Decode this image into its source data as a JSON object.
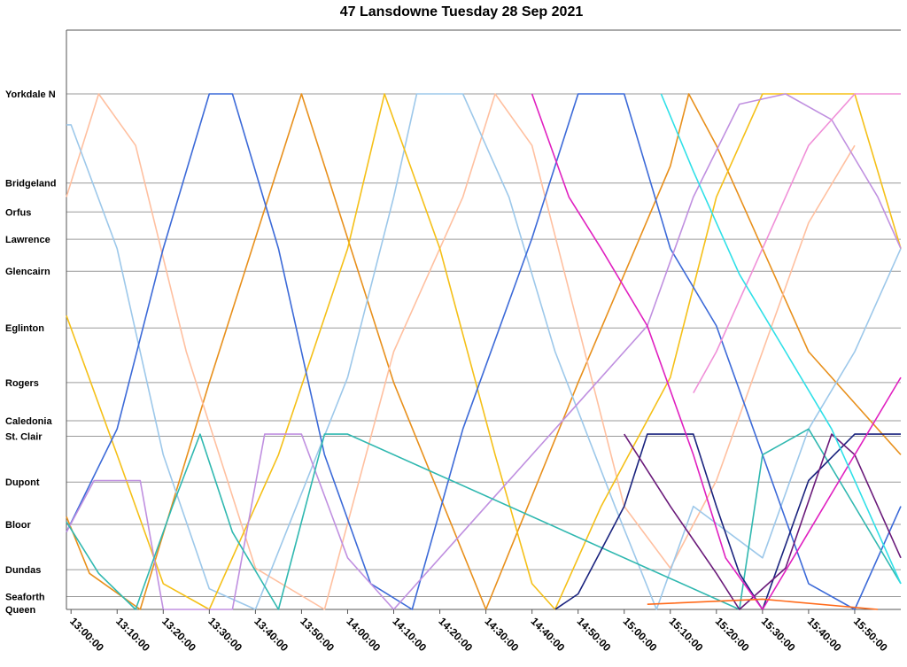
{
  "chart_data": {
    "type": "line",
    "title": "47 Lansdowne Tuesday 28 Sep 2021",
    "x_unit": "time of day",
    "x_range": [
      "12:59:00",
      "16:00:00"
    ],
    "x_ticks": [
      "13:00:00",
      "13:10:00",
      "13:20:00",
      "13:30:00",
      "13:40:00",
      "13:50:00",
      "14:00:00",
      "14:10:00",
      "14:20:00",
      "14:30:00",
      "14:40:00",
      "14:50:00",
      "15:00:00",
      "15:10:00",
      "15:20:00",
      "15:30:00",
      "15:40:00",
      "15:50:00"
    ],
    "y_unit": "stop position (0 = Queen, 1 = Yorkdale N)",
    "stops": [
      {
        "name": "Yorkdale N",
        "pos": 1.0
      },
      {
        "name": "Bridgeland",
        "pos": 0.827
      },
      {
        "name": "Orfus",
        "pos": 0.771
      },
      {
        "name": "Lawrence",
        "pos": 0.718
      },
      {
        "name": "Glencairn",
        "pos": 0.656
      },
      {
        "name": "Eglinton",
        "pos": 0.546
      },
      {
        "name": "Rogers",
        "pos": 0.44
      },
      {
        "name": "Caledonia",
        "pos": 0.366
      },
      {
        "name": "St. Clair",
        "pos": 0.336
      },
      {
        "name": "Dupont",
        "pos": 0.247
      },
      {
        "name": "Bloor",
        "pos": 0.165
      },
      {
        "name": "Dundas",
        "pos": 0.077
      },
      {
        "name": "Seaforth",
        "pos": 0.025
      },
      {
        "name": "Queen",
        "pos": 0.0
      }
    ],
    "gridlines": "horizontal at each stop",
    "legend": "none",
    "series": [
      {
        "color": "#e8901c",
        "points": [
          [
            "12:59:00",
            0.18
          ],
          [
            "13:04:00",
            0.07
          ],
          [
            "13:15:00",
            0.0
          ],
          [
            "13:30:00",
            0.44
          ],
          [
            "13:50:00",
            1.0
          ],
          [
            "14:10:00",
            0.44
          ],
          [
            "14:30:00",
            0.0
          ],
          [
            "14:50:00",
            0.44
          ],
          [
            "15:10:00",
            0.86
          ],
          [
            "15:14:00",
            1.0
          ],
          [
            "15:20:00",
            0.9
          ],
          [
            "15:40:00",
            0.5
          ],
          [
            "16:00:00",
            0.3
          ]
        ]
      },
      {
        "color": "#ffc0a0",
        "points": [
          [
            "12:59:00",
            0.8
          ],
          [
            "13:06:00",
            1.0
          ],
          [
            "13:14:00",
            0.9
          ],
          [
            "13:25:00",
            0.5
          ],
          [
            "13:40:00",
            0.08
          ],
          [
            "13:55:00",
            0.0
          ],
          [
            "14:10:00",
            0.5
          ],
          [
            "14:25:00",
            0.8
          ],
          [
            "14:32:00",
            1.0
          ],
          [
            "14:40:00",
            0.9
          ],
          [
            "14:50:00",
            0.55
          ],
          [
            "15:00:00",
            0.2
          ],
          [
            "15:10:00",
            0.08
          ],
          [
            "15:20:00",
            0.25
          ],
          [
            "15:40:00",
            0.75
          ],
          [
            "15:50:00",
            0.9
          ]
        ]
      },
      {
        "color": "#9dc8ea",
        "points": [
          [
            "12:59:00",
            0.94
          ],
          [
            "13:00:00",
            0.94
          ],
          [
            "13:10:00",
            0.7
          ],
          [
            "13:20:00",
            0.3
          ],
          [
            "13:30:00",
            0.04
          ],
          [
            "13:40:00",
            0.0
          ],
          [
            "14:00:00",
            0.45
          ],
          [
            "14:10:00",
            0.8
          ],
          [
            "14:15:00",
            1.0
          ],
          [
            "14:25:00",
            1.0
          ],
          [
            "14:35:00",
            0.8
          ],
          [
            "14:45:00",
            0.5
          ],
          [
            "14:58:00",
            0.2
          ],
          [
            "15:07:00",
            0.0
          ],
          [
            "15:15:00",
            0.2
          ],
          [
            "15:30:00",
            0.1
          ],
          [
            "15:40:00",
            0.35
          ],
          [
            "15:50:00",
            0.5
          ],
          [
            "16:00:00",
            0.7
          ]
        ]
      },
      {
        "color": "#f5c018",
        "points": [
          [
            "12:59:00",
            0.57
          ],
          [
            "13:10:00",
            0.3
          ],
          [
            "13:20:00",
            0.05
          ],
          [
            "13:30:00",
            0.0
          ],
          [
            "13:45:00",
            0.3
          ],
          [
            "14:00:00",
            0.7
          ],
          [
            "14:08:00",
            1.0
          ],
          [
            "14:20:00",
            0.7
          ],
          [
            "14:32:00",
            0.3
          ],
          [
            "14:40:00",
            0.05
          ],
          [
            "14:45:00",
            0.0
          ],
          [
            "14:55:00",
            0.2
          ],
          [
            "15:10:00",
            0.45
          ],
          [
            "15:20:00",
            0.8
          ],
          [
            "15:30:00",
            1.0
          ],
          [
            "15:50:00",
            1.0
          ],
          [
            "16:00:00",
            0.7
          ]
        ]
      },
      {
        "color": "#3c6ad8",
        "points": [
          [
            "12:59:00",
            0.15
          ],
          [
            "13:10:00",
            0.35
          ],
          [
            "13:20:00",
            0.7
          ],
          [
            "13:30:00",
            1.0
          ],
          [
            "13:35:00",
            1.0
          ],
          [
            "13:45:00",
            0.7
          ],
          [
            "13:55:00",
            0.3
          ],
          [
            "14:05:00",
            0.05
          ],
          [
            "14:14:00",
            0.0
          ],
          [
            "14:25:00",
            0.35
          ],
          [
            "14:40:00",
            0.72
          ],
          [
            "14:50:00",
            1.0
          ],
          [
            "15:00:00",
            1.0
          ],
          [
            "15:10:00",
            0.7
          ],
          [
            "15:20:00",
            0.55
          ],
          [
            "15:30:00",
            0.3
          ],
          [
            "15:40:00",
            0.05
          ],
          [
            "15:50:00",
            0.0
          ],
          [
            "16:00:00",
            0.2
          ]
        ]
      },
      {
        "color": "#c090e0",
        "points": [
          [
            "12:59:00",
            0.15
          ],
          [
            "13:05:00",
            0.25
          ],
          [
            "13:15:00",
            0.25
          ],
          [
            "13:20:00",
            0.0
          ],
          [
            "13:35:00",
            0.0
          ],
          [
            "13:42:00",
            0.34
          ],
          [
            "13:50:00",
            0.34
          ],
          [
            "14:00:00",
            0.1
          ],
          [
            "14:10:00",
            0.0
          ],
          [
            "15:05:00",
            0.55
          ],
          [
            "15:15:00",
            0.8
          ],
          [
            "15:25:00",
            0.98
          ],
          [
            "15:35:00",
            1.0
          ],
          [
            "15:45:00",
            0.95
          ],
          [
            "15:55:00",
            0.8
          ],
          [
            "16:00:00",
            0.7
          ]
        ]
      },
      {
        "color": "#30b8b0",
        "points": [
          [
            "12:59:00",
            0.17
          ],
          [
            "13:06:00",
            0.07
          ],
          [
            "13:14:00",
            0.0
          ],
          [
            "13:22:00",
            0.2
          ],
          [
            "13:28:00",
            0.34
          ],
          [
            "13:35:00",
            0.15
          ],
          [
            "13:45:00",
            0.0
          ],
          [
            "13:55:00",
            0.34
          ],
          [
            "14:00:00",
            0.34
          ],
          [
            "15:25:00",
            0.0
          ],
          [
            "15:30:00",
            0.3
          ],
          [
            "15:40:00",
            0.35
          ],
          [
            "15:50:00",
            0.2
          ],
          [
            "16:00:00",
            0.05
          ]
        ]
      },
      {
        "color": "#1a237e",
        "points": [
          [
            "14:45:00",
            0.0
          ],
          [
            "14:50:00",
            0.03
          ],
          [
            "15:00:00",
            0.2
          ],
          [
            "15:05:00",
            0.34
          ],
          [
            "15:15:00",
            0.34
          ],
          [
            "15:20:00",
            0.2
          ],
          [
            "15:25:00",
            0.07
          ],
          [
            "15:30:00",
            0.0
          ],
          [
            "15:40:00",
            0.25
          ],
          [
            "15:50:00",
            0.34
          ],
          [
            "16:00:00",
            0.34
          ]
        ]
      },
      {
        "color": "#6a1a7a",
        "points": [
          [
            "15:00:00",
            0.34
          ],
          [
            "15:10:00",
            0.2
          ],
          [
            "15:20:00",
            0.07
          ],
          [
            "15:25:00",
            0.0
          ],
          [
            "15:35:00",
            0.08
          ],
          [
            "15:45:00",
            0.34
          ],
          [
            "15:50:00",
            0.3
          ],
          [
            "16:00:00",
            0.1
          ]
        ]
      },
      {
        "color": "#e020c0",
        "points": [
          [
            "14:40:00",
            1.0
          ],
          [
            "14:48:00",
            0.8
          ],
          [
            "14:55:00",
            0.7
          ],
          [
            "15:05:00",
            0.55
          ],
          [
            "15:15:00",
            0.3
          ],
          [
            "15:22:00",
            0.1
          ],
          [
            "15:30:00",
            0.0
          ],
          [
            "15:40:00",
            0.15
          ],
          [
            "15:50:00",
            0.3
          ],
          [
            "16:00:00",
            0.45
          ]
        ]
      },
      {
        "color": "#f090d8",
        "points": [
          [
            "15:15:00",
            0.42
          ],
          [
            "15:20:00",
            0.5
          ],
          [
            "15:30:00",
            0.7
          ],
          [
            "15:40:00",
            0.9
          ],
          [
            "15:45:00",
            0.95
          ],
          [
            "15:50:00",
            1.0
          ],
          [
            "16:00:00",
            1.0
          ]
        ]
      },
      {
        "color": "#30e0e8",
        "points": [
          [
            "15:08:00",
            1.0
          ],
          [
            "15:15:00",
            0.85
          ],
          [
            "15:25:00",
            0.65
          ],
          [
            "15:35:00",
            0.5
          ],
          [
            "15:45:00",
            0.35
          ],
          [
            "15:55:00",
            0.15
          ],
          [
            "16:00:00",
            0.05
          ]
        ]
      },
      {
        "color": "#ff6a1a",
        "points": [
          [
            "15:05:00",
            0.01
          ],
          [
            "15:30:00",
            0.02
          ],
          [
            "15:55:00",
            0.0
          ]
        ]
      }
    ]
  }
}
